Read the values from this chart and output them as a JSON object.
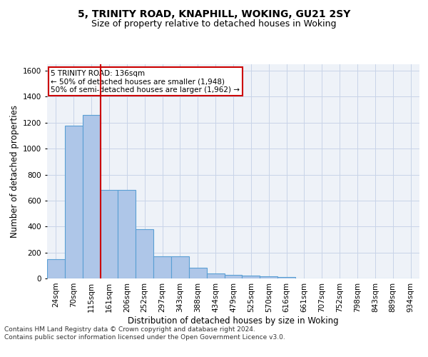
{
  "title1": "5, TRINITY ROAD, KNAPHILL, WOKING, GU21 2SY",
  "title2": "Size of property relative to detached houses in Woking",
  "xlabel": "Distribution of detached houses by size in Woking",
  "ylabel": "Number of detached properties",
  "categories": [
    "24sqm",
    "70sqm",
    "115sqm",
    "161sqm",
    "206sqm",
    "252sqm",
    "297sqm",
    "343sqm",
    "388sqm",
    "434sqm",
    "479sqm",
    "525sqm",
    "570sqm",
    "616sqm",
    "661sqm",
    "707sqm",
    "752sqm",
    "798sqm",
    "843sqm",
    "889sqm",
    "934sqm"
  ],
  "values": [
    150,
    1175,
    1260,
    680,
    680,
    380,
    170,
    170,
    80,
    38,
    28,
    22,
    18,
    13,
    0,
    0,
    0,
    0,
    0,
    0,
    0
  ],
  "bar_color": "#aec6e8",
  "bar_edge_color": "#5a9fd4",
  "bar_linewidth": 0.8,
  "grid_color": "#c8d4e8",
  "background_color": "#eef2f8",
  "vline_x": 2.5,
  "vline_color": "#cc0000",
  "annotation_text": "5 TRINITY ROAD: 136sqm\n← 50% of detached houses are smaller (1,948)\n50% of semi-detached houses are larger (1,962) →",
  "annotation_box_color": "#ffffff",
  "annotation_box_edge_color": "#cc0000",
  "ylim": [
    0,
    1650
  ],
  "yticks": [
    0,
    200,
    400,
    600,
    800,
    1000,
    1200,
    1400,
    1600
  ],
  "footnote": "Contains HM Land Registry data © Crown copyright and database right 2024.\nContains public sector information licensed under the Open Government Licence v3.0.",
  "title1_fontsize": 10,
  "title2_fontsize": 9,
  "xlabel_fontsize": 8.5,
  "ylabel_fontsize": 8.5,
  "tick_fontsize": 7.5,
  "annotation_fontsize": 7.5,
  "footnote_fontsize": 6.5
}
